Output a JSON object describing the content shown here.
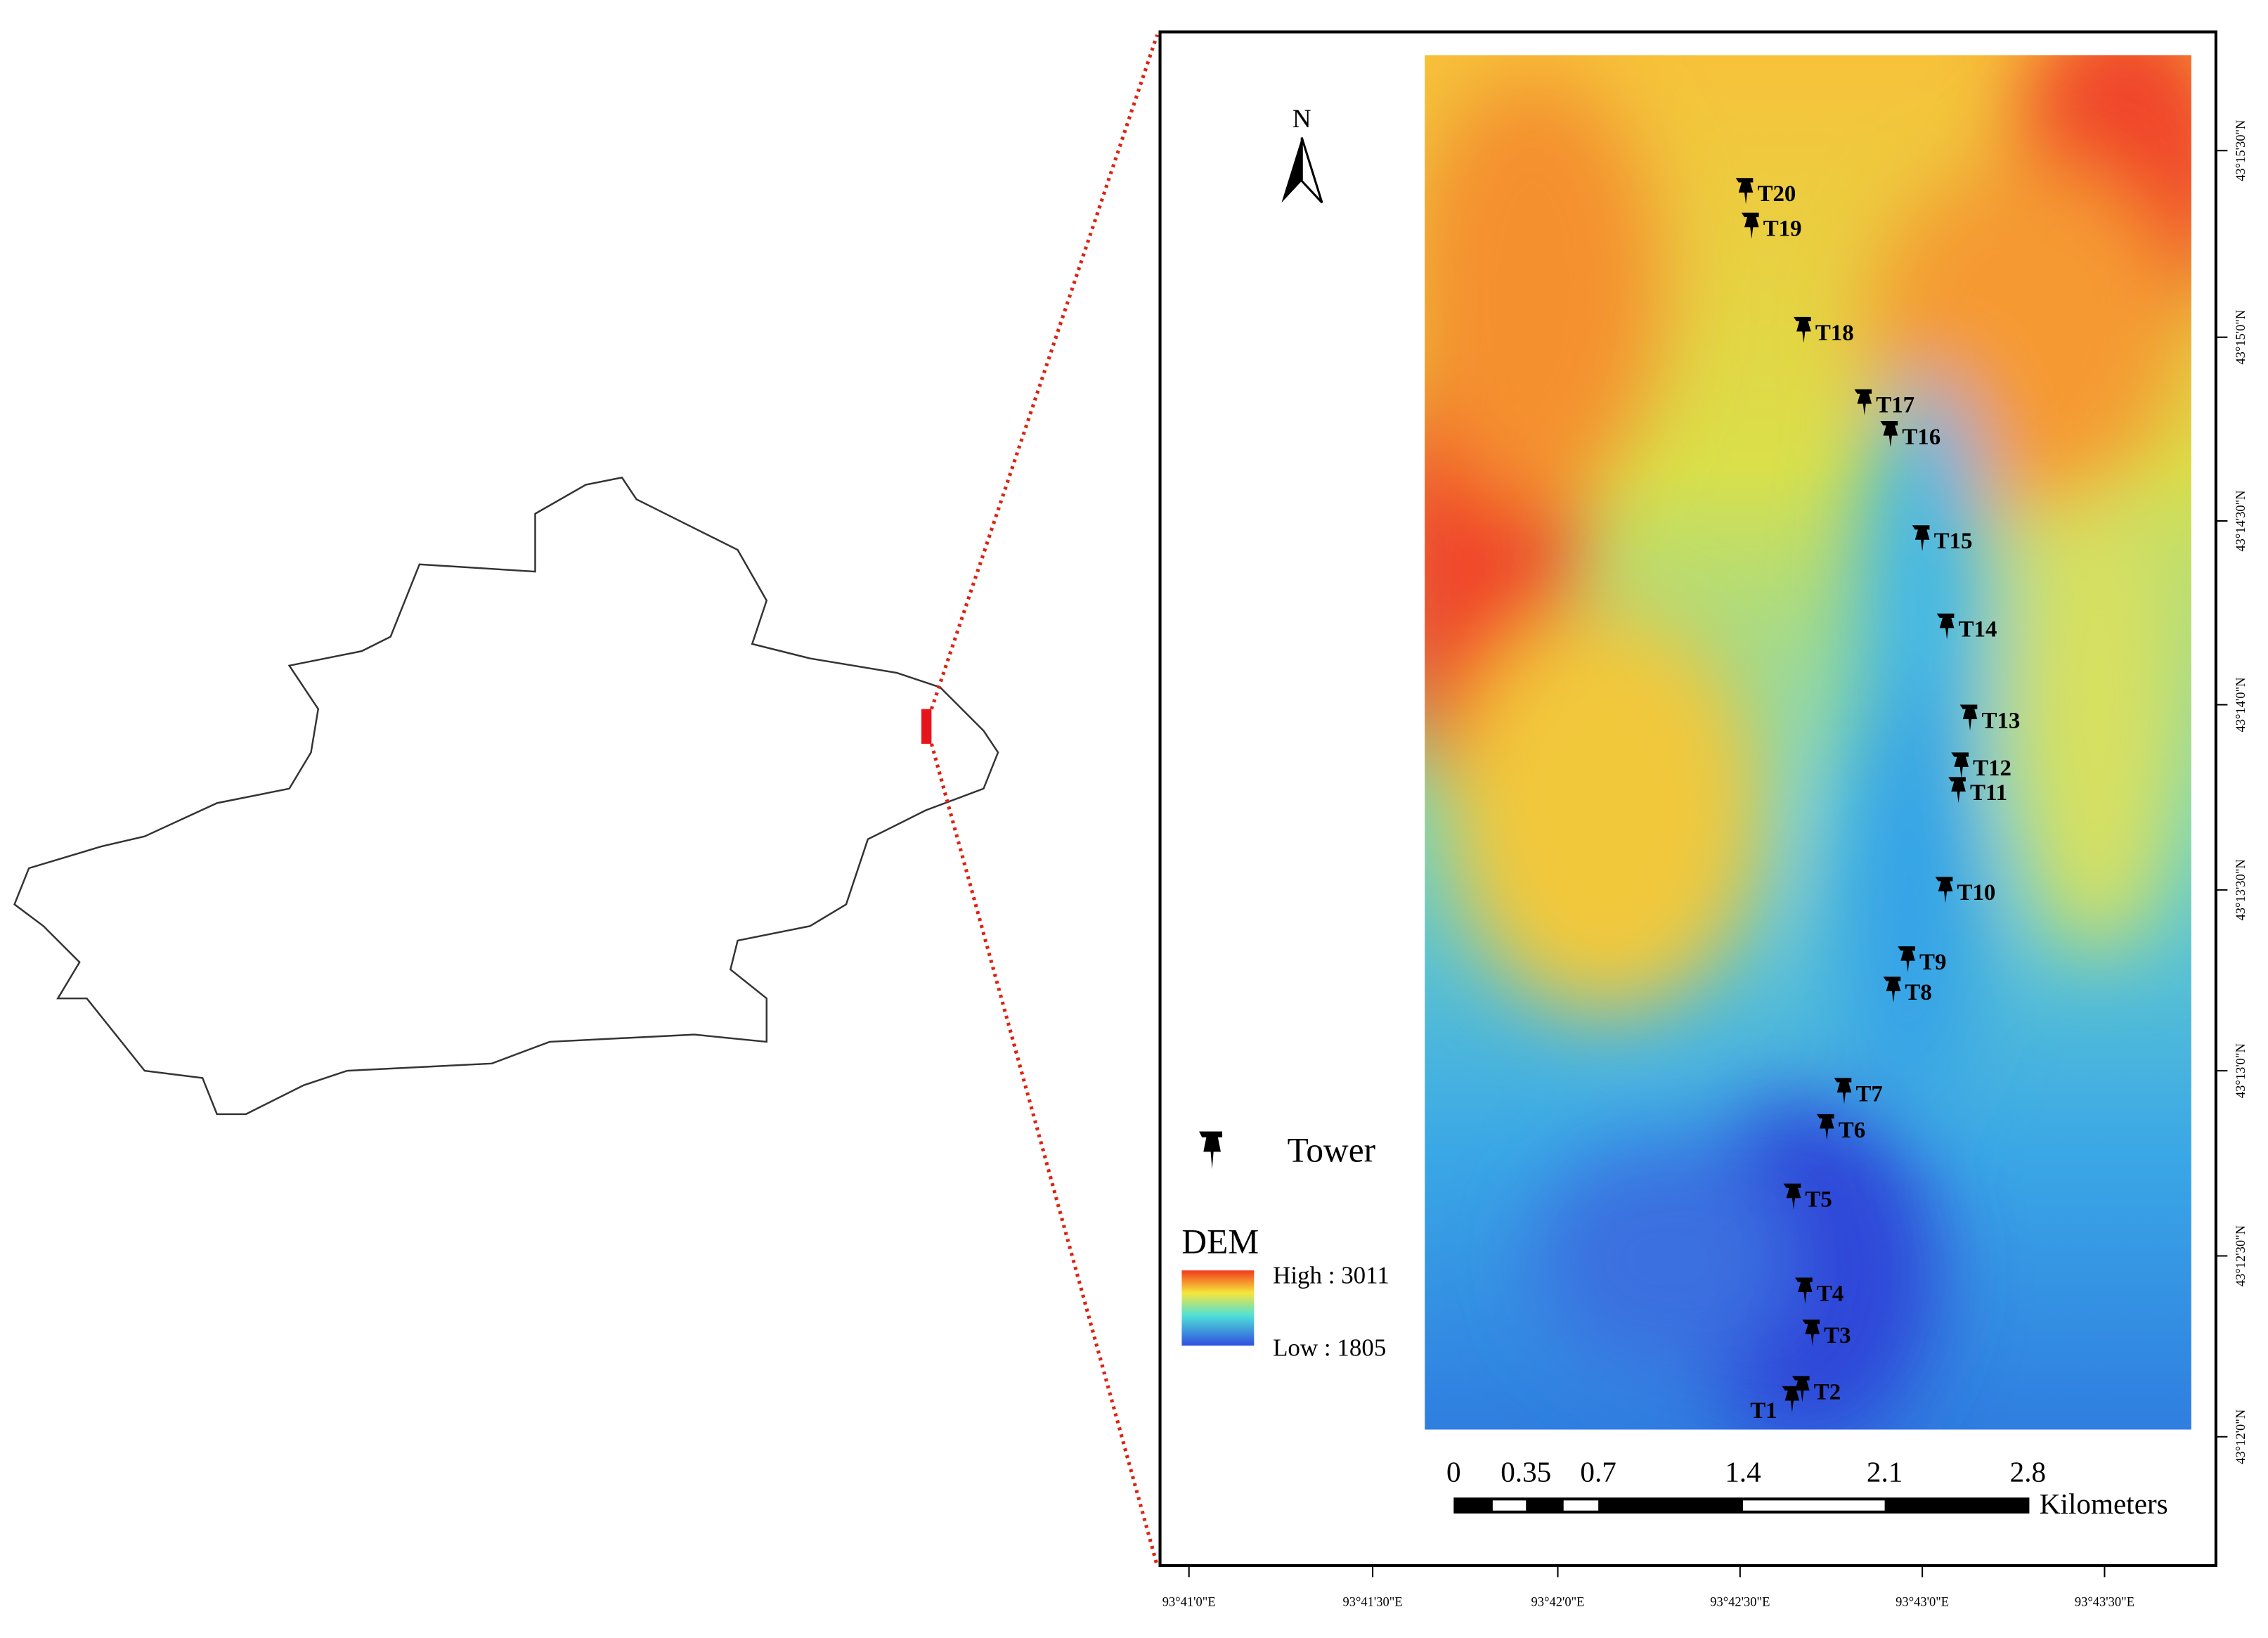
{
  "map": {
    "north": "N",
    "towers": [
      "T1",
      "T2",
      "T3",
      "T4",
      "T5",
      "T6",
      "T7",
      "T8",
      "T9",
      "T10",
      "T11",
      "T12",
      "T13",
      "T14",
      "T15",
      "T16",
      "T17",
      "T18",
      "T19",
      "T20"
    ],
    "legend": {
      "tower": "Tower",
      "dem_title": "DEM",
      "high": "High : 3011",
      "low": "Low : 1805"
    },
    "scale_bar": {
      "labels": [
        "0",
        "0.35",
        "0.7",
        "1.4",
        "2.1",
        "2.8"
      ],
      "unit": "Kilometers"
    },
    "longitude_labels": [
      "93°41'0\"E",
      "93°41'30\"E",
      "93°42'0\"E",
      "93°42'30\"E",
      "93°43'0\"E",
      "93°43'30\"E"
    ],
    "latitude_labels": [
      "43°15'30\"N",
      "43°15'0\"N",
      "43°14'30\"N",
      "43°14'0\"N",
      "43°13'30\"N",
      "43°13'0\"N",
      "43°12'30\"N",
      "43°12'0\"N"
    ]
  }
}
